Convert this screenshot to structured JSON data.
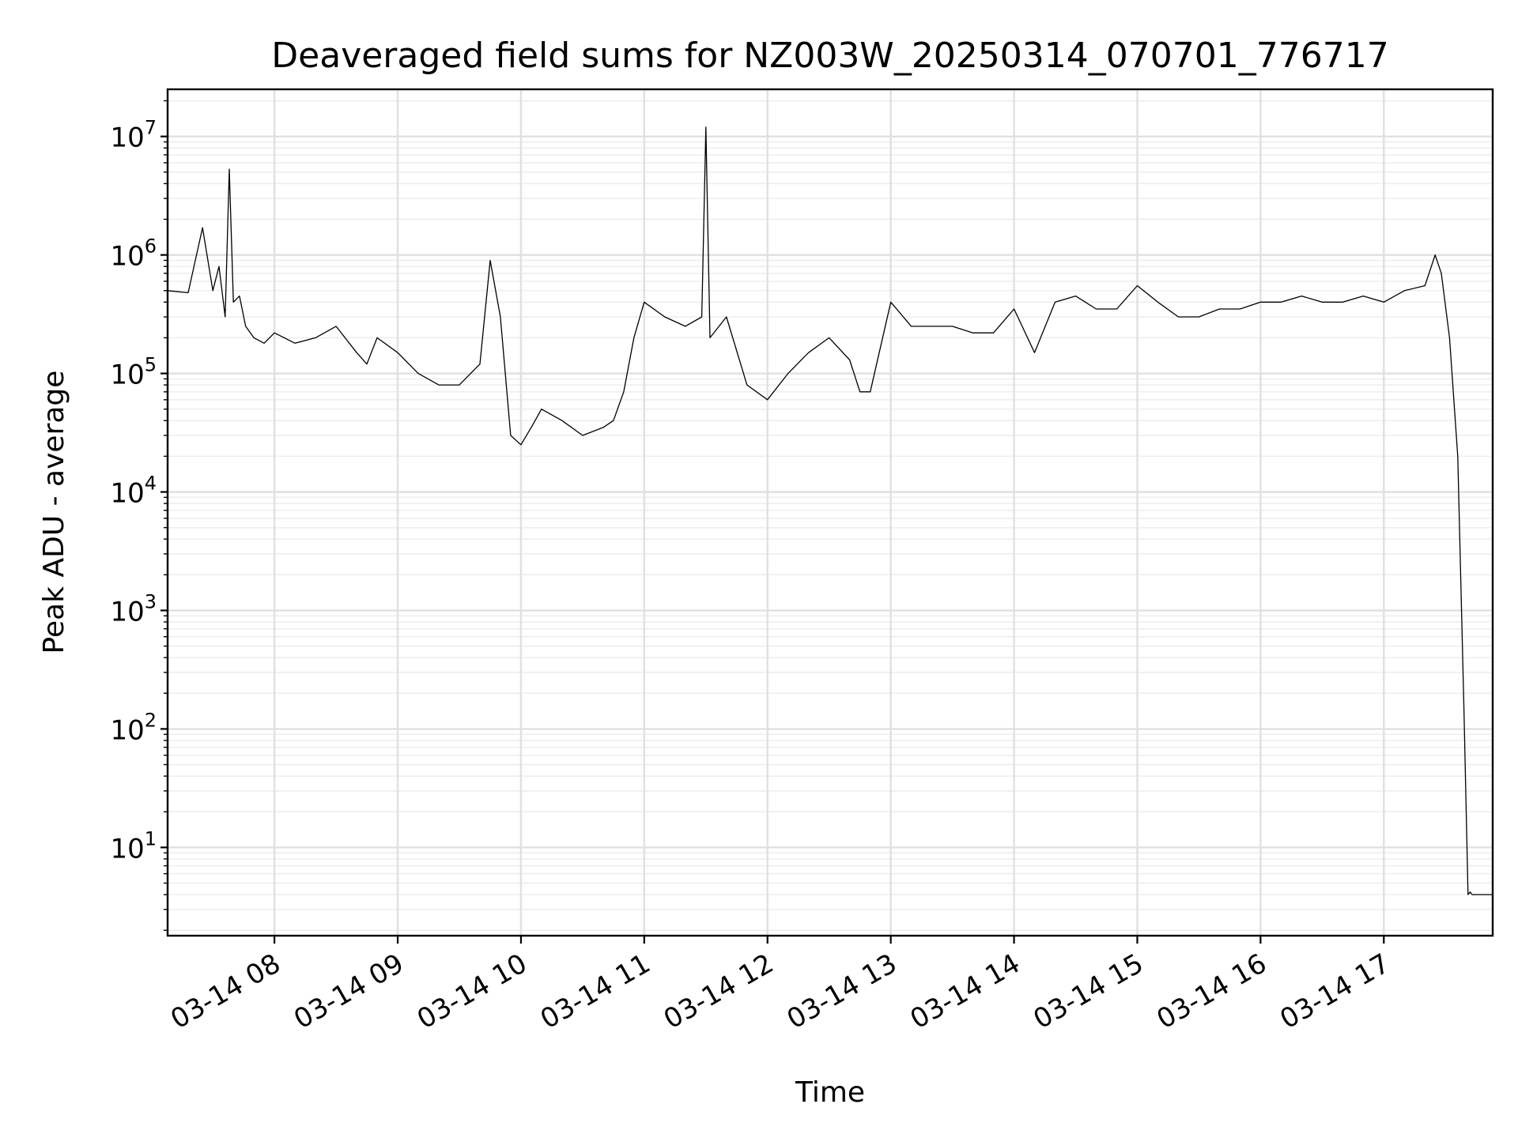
{
  "chart_data": {
    "type": "line",
    "title": "Deaveraged field sums for NZ003W_20250314_070701_776717",
    "xlabel": "Time",
    "ylabel": "Peak ADU - average",
    "y_scale": "log",
    "ylim": [
      1.8,
      25000000
    ],
    "xlim": [
      "03-14 07:08",
      "03-14 17:53"
    ],
    "grid": true,
    "legend": "none",
    "line_color": "#000000",
    "x_ticks": [
      "03-14 08",
      "03-14 09",
      "03-14 10",
      "03-14 11",
      "03-14 12",
      "03-14 13",
      "03-14 14",
      "03-14 15",
      "03-14 16",
      "03-14 17"
    ],
    "y_ticks": [
      {
        "value": 10,
        "base": "10",
        "exp": "1"
      },
      {
        "value": 100,
        "base": "10",
        "exp": "2"
      },
      {
        "value": 1000,
        "base": "10",
        "exp": "3"
      },
      {
        "value": 10000,
        "base": "10",
        "exp": "4"
      },
      {
        "value": 100000,
        "base": "10",
        "exp": "5"
      },
      {
        "value": 1000000,
        "base": "10",
        "exp": "6"
      },
      {
        "value": 10000000,
        "base": "10",
        "exp": "7"
      }
    ],
    "series": [
      {
        "x": [
          "07:08",
          "07:18",
          "07:25",
          "07:30",
          "07:33",
          "07:36",
          "07:38",
          "07:40",
          "07:43",
          "07:46",
          "07:50",
          "07:55",
          "08:00",
          "08:10",
          "08:20",
          "08:30",
          "08:40",
          "08:45",
          "08:50",
          "09:00",
          "09:10",
          "09:20",
          "09:30",
          "09:40",
          "09:45",
          "09:50",
          "09:55",
          "10:00",
          "10:05",
          "10:10",
          "10:20",
          "10:30",
          "10:40",
          "10:45",
          "10:50",
          "10:55",
          "11:00",
          "11:10",
          "11:20",
          "11:28",
          "11:30",
          "11:32",
          "11:40",
          "11:50",
          "12:00",
          "12:10",
          "12:20",
          "12:30",
          "12:40",
          "12:45",
          "12:50",
          "13:00",
          "13:10",
          "13:20",
          "13:30",
          "13:40",
          "13:50",
          "14:00",
          "14:10",
          "14:20",
          "14:30",
          "14:40",
          "14:50",
          "15:00",
          "15:10",
          "15:20",
          "15:30",
          "15:40",
          "15:50",
          "16:00",
          "16:10",
          "16:20",
          "16:30",
          "16:40",
          "16:50",
          "17:00",
          "17:10",
          "17:20",
          "17:25",
          "17:28",
          "17:32",
          "17:36",
          "17:39",
          "17:41",
          "17:42",
          "17:43",
          "17:53"
        ],
        "y": [
          500000,
          480000,
          1700000,
          500000,
          800000,
          300000,
          5300000,
          400000,
          450000,
          250000,
          200000,
          180000,
          220000,
          180000,
          200000,
          250000,
          150000,
          120000,
          200000,
          150000,
          100000,
          80000,
          80000,
          120000,
          900000,
          300000,
          30000,
          25000,
          35000,
          50000,
          40000,
          30000,
          35000,
          40000,
          70000,
          200000,
          400000,
          300000,
          250000,
          300000,
          12000000,
          200000,
          300000,
          80000,
          60000,
          100000,
          150000,
          200000,
          130000,
          70000,
          70000,
          400000,
          250000,
          250000,
          250000,
          220000,
          220000,
          350000,
          150000,
          400000,
          450000,
          350000,
          350000,
          550000,
          400000,
          300000,
          300000,
          350000,
          350000,
          400000,
          400000,
          450000,
          400000,
          400000,
          450000,
          400000,
          500000,
          550000,
          1000000,
          700000,
          200000,
          20000,
          150,
          4,
          4.2,
          4,
          4
        ]
      }
    ]
  }
}
